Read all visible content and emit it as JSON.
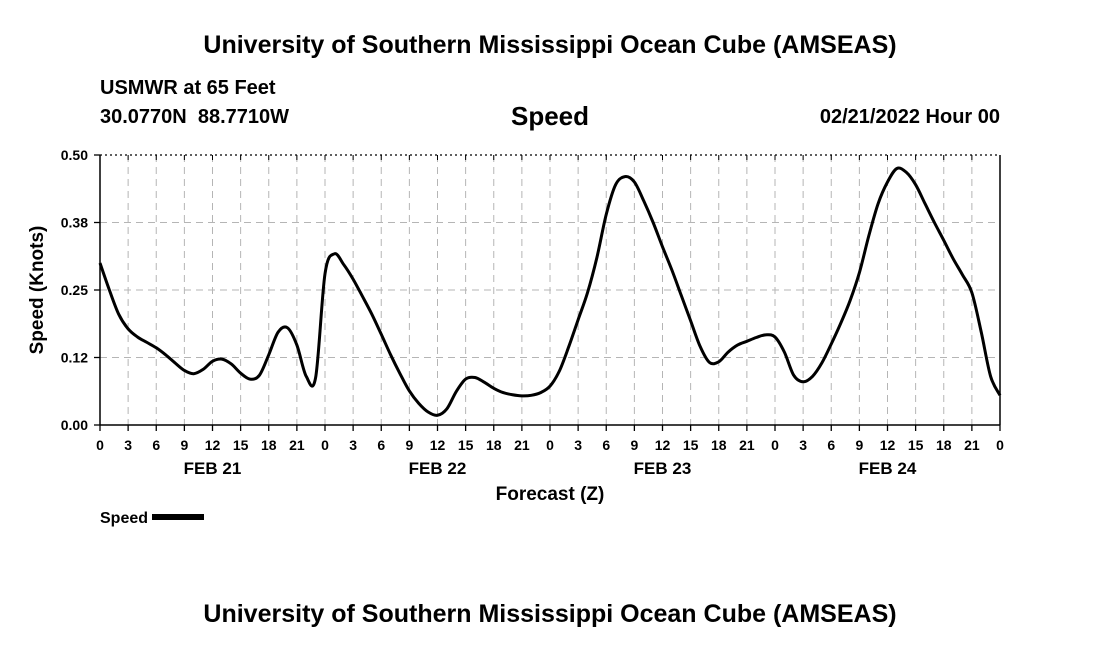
{
  "header": {
    "title": "University of Southern Mississippi Ocean Cube (AMSEAS)",
    "station": "USMWR at 65 Feet",
    "coordinates": "30.0770N  88.7710W",
    "datetime": "02/21/2022 Hour 00"
  },
  "footer": {
    "title": "University of Southern Mississippi Ocean Cube (AMSEAS)"
  },
  "chart_data": {
    "type": "line",
    "title": "Speed",
    "xlabel": "Forecast (Z)",
    "ylabel": "Speed (Knots)",
    "xlim": [
      0,
      96
    ],
    "ylim": [
      0,
      0.5
    ],
    "y_ticks": [
      "0.00",
      "0.12",
      "0.25",
      "0.38",
      "0.50"
    ],
    "x_tick_labels": [
      "0",
      "3",
      "6",
      "9",
      "12",
      "15",
      "18",
      "21",
      "0",
      "3",
      "6",
      "9",
      "12",
      "15",
      "18",
      "21",
      "0",
      "3",
      "6",
      "9",
      "12",
      "15",
      "18",
      "21",
      "0",
      "3",
      "6",
      "9",
      "12",
      "15",
      "18",
      "21",
      "0"
    ],
    "day_labels": [
      "FEB 21",
      "FEB 22",
      "FEB 23",
      "FEB 24"
    ],
    "grid": true,
    "legend": {
      "label": "Speed",
      "position": "bottom-left"
    },
    "series": [
      {
        "name": "Speed",
        "color": "#000000",
        "x": [
          0,
          1,
          2,
          3,
          4,
          5,
          6,
          7,
          8,
          9,
          10,
          11,
          12,
          13,
          14,
          15,
          16,
          17,
          18,
          19,
          20,
          21,
          22,
          23,
          24,
          25,
          26,
          27,
          28,
          29,
          30,
          31,
          32,
          33,
          34,
          35,
          36,
          37,
          38,
          39,
          40,
          41,
          42,
          43,
          44,
          45,
          46,
          47,
          48,
          49,
          50,
          51,
          52,
          53,
          54,
          55,
          56,
          57,
          58,
          59,
          60,
          61,
          62,
          63,
          64,
          65,
          66,
          67,
          68,
          69,
          70,
          71,
          72,
          73,
          74,
          75,
          76,
          77,
          78,
          79,
          80,
          81,
          82,
          83,
          84,
          85,
          86,
          87,
          88,
          89,
          90,
          91,
          92,
          93,
          94,
          95,
          96
        ],
        "values": [
          0.3,
          0.25,
          0.205,
          0.178,
          0.163,
          0.153,
          0.143,
          0.13,
          0.115,
          0.101,
          0.095,
          0.103,
          0.118,
          0.122,
          0.113,
          0.096,
          0.085,
          0.092,
          0.13,
          0.172,
          0.18,
          0.148,
          0.09,
          0.088,
          0.28,
          0.317,
          0.297,
          0.27,
          0.238,
          0.205,
          0.168,
          0.13,
          0.095,
          0.063,
          0.04,
          0.024,
          0.018,
          0.03,
          0.062,
          0.085,
          0.088,
          0.079,
          0.068,
          0.06,
          0.056,
          0.054,
          0.055,
          0.06,
          0.072,
          0.1,
          0.145,
          0.195,
          0.245,
          0.31,
          0.39,
          0.445,
          0.46,
          0.45,
          0.415,
          0.375,
          0.33,
          0.287,
          0.24,
          0.193,
          0.146,
          0.116,
          0.117,
          0.135,
          0.148,
          0.155,
          0.162,
          0.167,
          0.163,
          0.135,
          0.092,
          0.08,
          0.09,
          0.115,
          0.15,
          0.188,
          0.23,
          0.282,
          0.35,
          0.41,
          0.45,
          0.475,
          0.468,
          0.445,
          0.41,
          0.375,
          0.342,
          0.308,
          0.278,
          0.245,
          0.172,
          0.09,
          0.055
        ]
      }
    ]
  }
}
